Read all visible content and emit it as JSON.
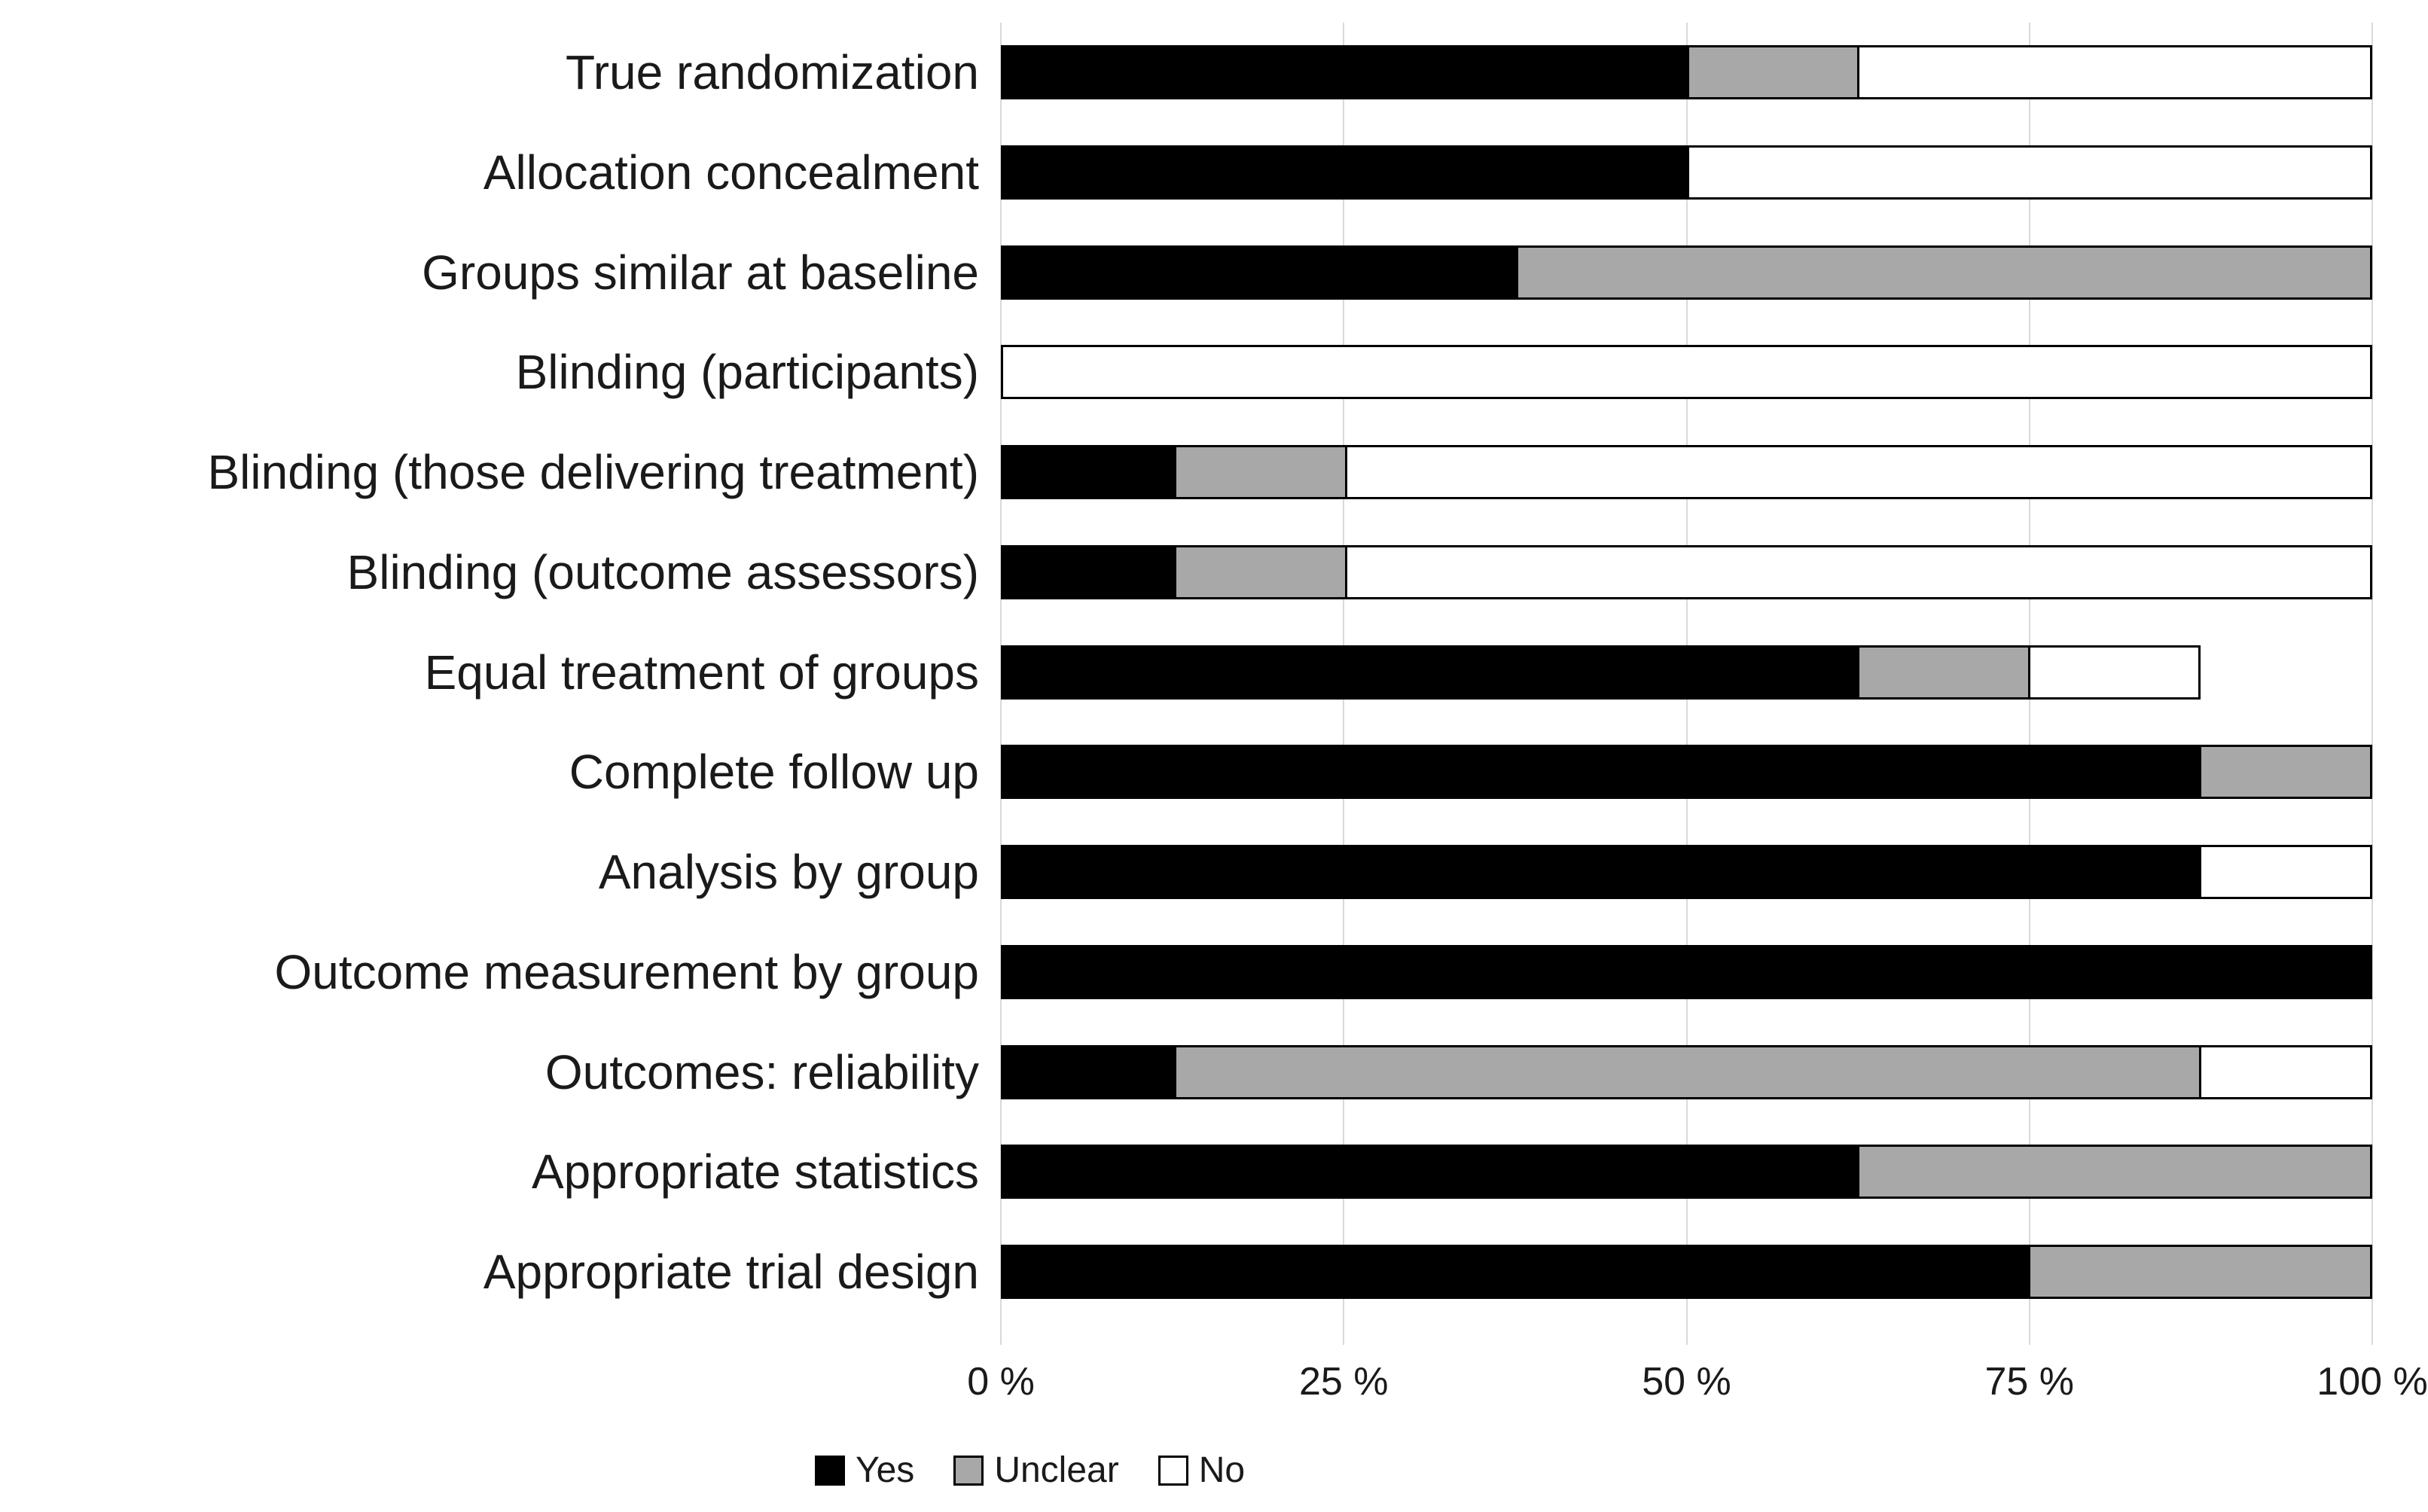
{
  "chart_data": {
    "type": "bar",
    "orientation": "horizontal-stacked",
    "title": "",
    "xlabel": "",
    "ylabel": "",
    "xlim": [
      0,
      100
    ],
    "x_ticks": [
      {
        "label": "0 %",
        "value": 0
      },
      {
        "label": "25 %",
        "value": 25
      },
      {
        "label": "50 %",
        "value": 50
      },
      {
        "label": "75 %",
        "value": 75
      },
      {
        "label": "100 %",
        "value": 100
      }
    ],
    "grid": "vertical-only",
    "legend_position": "bottom-left",
    "categories": [
      "True randomization",
      "Allocation concealment",
      "Groups similar at baseline",
      "Blinding (participants)",
      "Blinding (those delivering treatment)",
      "Blinding (outcome assessors)",
      "Equal treatment of groups",
      "Complete follow up",
      "Analysis by group",
      "Outcome measurement by group",
      "Outcomes: reliability",
      "Appropriate statistics",
      "Appropriate trial design"
    ],
    "series": [
      {
        "name": "Yes",
        "color": "#000000",
        "values": [
          50,
          50,
          37.5,
          0,
          12.5,
          12.5,
          62.5,
          87.5,
          87.5,
          100,
          12.5,
          62.5,
          75
        ]
      },
      {
        "name": "Unclear",
        "color": "#a8a8a8",
        "values": [
          12.5,
          0,
          62.5,
          0,
          12.5,
          12.5,
          12.5,
          12.5,
          0,
          0,
          75,
          37.5,
          25
        ]
      },
      {
        "name": "No",
        "color": "#ffffff",
        "values": [
          37.5,
          50,
          0,
          100,
          75,
          75,
          12.5,
          0,
          12.5,
          0,
          12.5,
          0,
          0
        ]
      }
    ],
    "colors": {
      "grid": "#d9d9d9",
      "bar_border": "#000000",
      "text": "#1a1a1a",
      "background": "#ffffff"
    }
  }
}
